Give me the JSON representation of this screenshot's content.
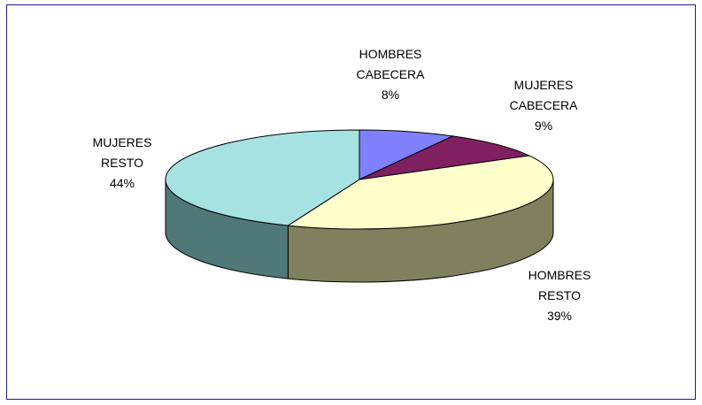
{
  "chart_data": {
    "type": "pie",
    "categories": [
      "HOMBRES CABECERA",
      "MUJERES CABECERA",
      "HOMBRES RESTO",
      "MUJERES RESTO"
    ],
    "values": [
      8,
      9,
      39,
      44
    ],
    "value_labels": [
      "8%",
      "9%",
      "39%",
      "44%"
    ],
    "colors": [
      "#8080ff",
      "#802060",
      "#ffffcc",
      "#a6e2e2"
    ],
    "side_colors": [
      "#4d4d99",
      "#4d1339",
      "#80805e",
      "#507878"
    ]
  }
}
